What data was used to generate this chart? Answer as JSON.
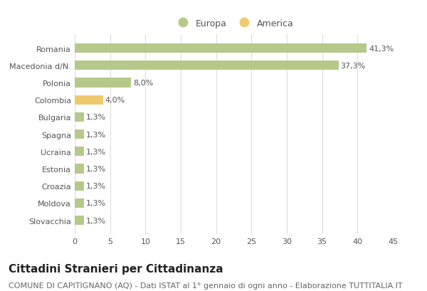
{
  "categories": [
    "Romania",
    "Macedonia d/N.",
    "Polonia",
    "Colombia",
    "Bulgaria",
    "Spagna",
    "Ucraina",
    "Estonia",
    "Croazia",
    "Moldova",
    "Slovacchia"
  ],
  "values": [
    41.3,
    37.3,
    8.0,
    4.0,
    1.3,
    1.3,
    1.3,
    1.3,
    1.3,
    1.3,
    1.3
  ],
  "labels": [
    "41,3%",
    "37,3%",
    "8,0%",
    "4,0%",
    "1,3%",
    "1,3%",
    "1,3%",
    "1,3%",
    "1,3%",
    "1,3%",
    "1,3%"
  ],
  "colors": [
    "#b5c98a",
    "#b5c98a",
    "#b5c98a",
    "#f0c96e",
    "#b5c98a",
    "#b5c98a",
    "#b5c98a",
    "#b5c98a",
    "#b5c98a",
    "#b5c98a",
    "#b5c98a"
  ],
  "legend_europa_color": "#b5c98a",
  "legend_america_color": "#f0c96e",
  "xlim": [
    0,
    45
  ],
  "xticks": [
    0,
    5,
    10,
    15,
    20,
    25,
    30,
    35,
    40,
    45
  ],
  "title": "Cittadini Stranieri per Cittadinanza",
  "subtitle": "COMUNE DI CAPITIGNANO (AQ) - Dati ISTAT al 1° gennaio di ogni anno - Elaborazione TUTTITALIA.IT",
  "background_color": "#ffffff",
  "grid_color": "#dddddd",
  "bar_height": 0.55,
  "title_fontsize": 11,
  "subtitle_fontsize": 8,
  "label_fontsize": 8,
  "tick_fontsize": 8,
  "legend_fontsize": 9
}
